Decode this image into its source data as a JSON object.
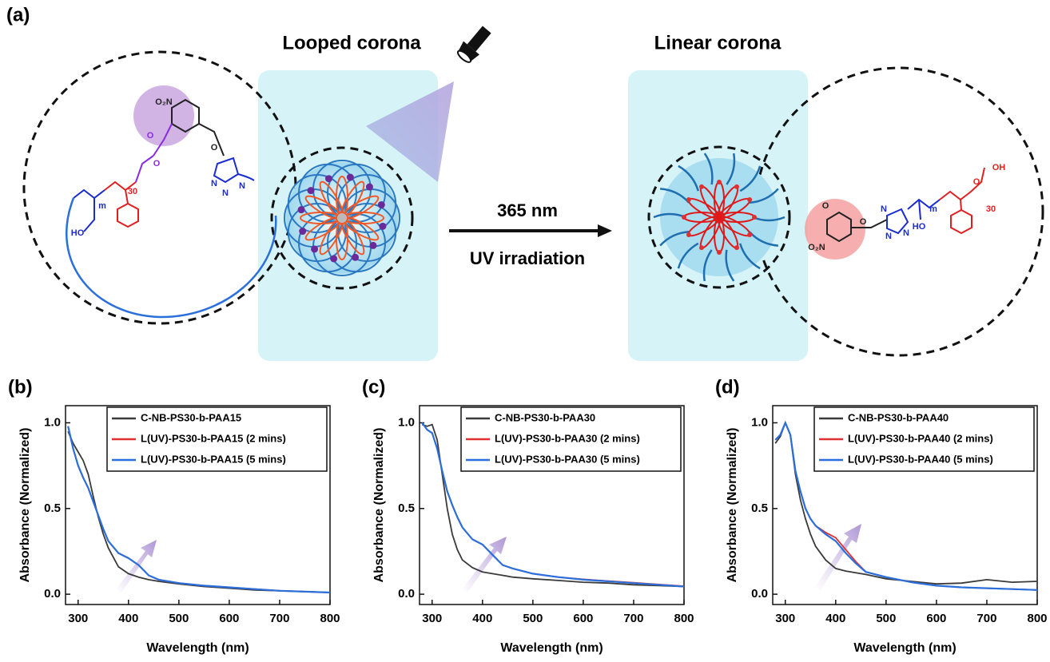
{
  "figure_label": "(a)",
  "scheme": {
    "left_title": "Looped corona",
    "right_title": "Linear corona",
    "arrow_top": "365 nm",
    "arrow_bottom": "UV irradiation",
    "left_labels": [
      "O₂N",
      "O",
      "O",
      "O",
      "HO",
      "N",
      "N",
      "N",
      "m",
      "30"
    ],
    "right_labels": [
      "OH",
      "O",
      "O",
      "HO",
      "O₂N",
      "O",
      "N",
      "N",
      "N",
      "m",
      "30"
    ]
  },
  "chart_data": [
    {
      "type": "line",
      "panel": "(b)",
      "x_label": "Wavelength (nm)",
      "y_label": "Absorbance (Normalized)",
      "xlim": [
        275,
        800
      ],
      "xticks": [
        300,
        400,
        500,
        600,
        700,
        800
      ],
      "ylim": [
        -0.06,
        1.1
      ],
      "yticks": [
        {
          "value": 0,
          "label": "0.0"
        },
        0.5,
        {
          "value": 1,
          "label": "1.0"
        }
      ],
      "legend": "upper right",
      "x": [
        280,
        290,
        300,
        310,
        320,
        330,
        340,
        350,
        360,
        380,
        400,
        420,
        440,
        460,
        500,
        550,
        600,
        650,
        700,
        750,
        800
      ],
      "series": [
        {
          "name": "C-NB-PS30-b-PAA15",
          "color": "#3a3a3a",
          "values": [
            0.95,
            0.88,
            0.83,
            0.78,
            0.7,
            0.57,
            0.45,
            0.35,
            0.27,
            0.16,
            0.12,
            0.1,
            0.085,
            0.075,
            0.06,
            0.045,
            0.035,
            0.025,
            0.02,
            0.015,
            0.01
          ]
        },
        {
          "name": "L(UV)-PS30-b-PAA15 (2 mins)",
          "color": "#e03030",
          "values": [
            0.98,
            0.85,
            0.75,
            0.68,
            0.62,
            0.54,
            0.46,
            0.38,
            0.31,
            0.24,
            0.21,
            0.17,
            0.11,
            0.085,
            0.065,
            0.05,
            0.04,
            0.03,
            0.02,
            0.015,
            0.01
          ]
        },
        {
          "name": "L(UV)-PS30-b-PAA15 (5 mins)",
          "color": "#2a6fdb",
          "values": [
            0.98,
            0.85,
            0.75,
            0.68,
            0.62,
            0.54,
            0.46,
            0.38,
            0.31,
            0.24,
            0.21,
            0.17,
            0.11,
            0.085,
            0.065,
            0.05,
            0.04,
            0.03,
            0.02,
            0.015,
            0.01
          ]
        }
      ]
    },
    {
      "type": "line",
      "panel": "(c)",
      "x_label": "Wavelength (nm)",
      "y_label": "Absorbance (Normalized)",
      "xlim": [
        275,
        800
      ],
      "xticks": [
        300,
        400,
        500,
        600,
        700,
        800
      ],
      "ylim": [
        -0.06,
        1.1
      ],
      "yticks": [
        {
          "value": 0,
          "label": "0.0"
        },
        0.5,
        {
          "value": 1,
          "label": "1.0"
        }
      ],
      "legend": "upper right",
      "x": [
        280,
        290,
        300,
        310,
        320,
        330,
        340,
        350,
        360,
        380,
        400,
        420,
        440,
        460,
        500,
        550,
        600,
        650,
        700,
        750,
        800
      ],
      "series": [
        {
          "name": "C-NB-PS30-b-PAA30",
          "color": "#3a3a3a",
          "values": [
            0.99,
            0.98,
            0.99,
            0.9,
            0.7,
            0.5,
            0.35,
            0.26,
            0.2,
            0.155,
            0.13,
            0.12,
            0.11,
            0.1,
            0.09,
            0.08,
            0.07,
            0.065,
            0.055,
            0.05,
            0.045
          ]
        },
        {
          "name": "L(UV)-PS30-b-PAA30 (2 mins)",
          "color": "#e03030",
          "values": [
            1.0,
            0.96,
            0.94,
            0.85,
            0.72,
            0.6,
            0.52,
            0.45,
            0.39,
            0.32,
            0.29,
            0.23,
            0.17,
            0.15,
            0.12,
            0.1,
            0.087,
            0.077,
            0.067,
            0.057,
            0.047
          ]
        },
        {
          "name": "L(UV)-PS30-b-PAA30 (5 mins)",
          "color": "#2a6fdb",
          "values": [
            1.0,
            0.96,
            0.94,
            0.85,
            0.72,
            0.6,
            0.52,
            0.45,
            0.39,
            0.32,
            0.29,
            0.23,
            0.17,
            0.15,
            0.12,
            0.1,
            0.085,
            0.075,
            0.065,
            0.055,
            0.045
          ]
        }
      ]
    },
    {
      "type": "line",
      "panel": "(d)",
      "x_label": "Wavelength (nm)",
      "y_label": "Absorbance (Normalized)",
      "xlim": [
        275,
        800
      ],
      "xticks": [
        300,
        400,
        500,
        600,
        700,
        800
      ],
      "ylim": [
        -0.06,
        1.1
      ],
      "yticks": [
        {
          "value": 0,
          "label": "0.0"
        },
        0.5,
        {
          "value": 1,
          "label": "1.0"
        }
      ],
      "legend": "upper right",
      "x": [
        280,
        290,
        300,
        310,
        320,
        330,
        340,
        350,
        360,
        380,
        400,
        420,
        440,
        460,
        500,
        550,
        600,
        650,
        700,
        750,
        800
      ],
      "series": [
        {
          "name": "C-NB-PS30-b-PAA40",
          "color": "#3a3a3a",
          "values": [
            0.88,
            0.92,
            1.0,
            0.93,
            0.7,
            0.55,
            0.44,
            0.35,
            0.28,
            0.2,
            0.15,
            0.135,
            0.125,
            0.115,
            0.09,
            0.075,
            0.06,
            0.065,
            0.085,
            0.07,
            0.075
          ]
        },
        {
          "name": "L(UV)-PS30-b-PAA40 (2 mins)",
          "color": "#e03030",
          "values": [
            0.9,
            0.93,
            1.0,
            0.93,
            0.72,
            0.6,
            0.5,
            0.44,
            0.4,
            0.36,
            0.33,
            0.26,
            0.19,
            0.13,
            0.1,
            0.07,
            0.05,
            0.04,
            0.035,
            0.03,
            0.025
          ]
        },
        {
          "name": "L(UV)-PS30-b-PAA40 (5 mins)",
          "color": "#2a6fdb",
          "values": [
            0.9,
            0.93,
            1.0,
            0.93,
            0.72,
            0.6,
            0.5,
            0.44,
            0.4,
            0.35,
            0.31,
            0.24,
            0.18,
            0.13,
            0.1,
            0.07,
            0.05,
            0.04,
            0.035,
            0.03,
            0.025
          ]
        }
      ]
    }
  ]
}
